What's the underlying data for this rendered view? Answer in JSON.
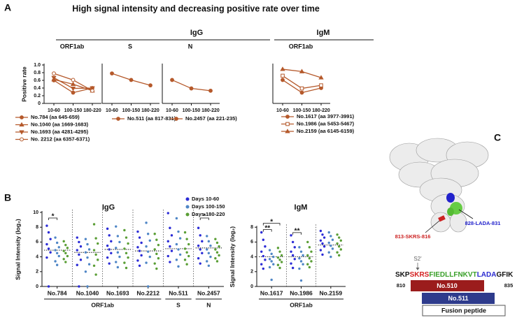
{
  "title": "High signal intensity and decreasing positive rate over time",
  "panel_labels": [
    "A",
    "B",
    "C"
  ],
  "panel_a_headers": [
    "IgG",
    "IgM"
  ],
  "chart_data": [
    {
      "type": "line",
      "title": "ORF1ab",
      "ylabel": "Positive rate",
      "categories": [
        "10-60",
        "100-150",
        "180-220"
      ],
      "ylim": [
        0,
        1
      ],
      "yticks": [
        0,
        0.2,
        0.4,
        0.6,
        0.8,
        {
          "value": 1,
          "label": "1.0"
        }
      ],
      "series": [
        {
          "name": "No.784 (aa 645-659)",
          "color": "#b5592b",
          "marker": "circle",
          "values": [
            0.6,
            0.28,
            0.4
          ]
        },
        {
          "name": "No.1040 (aa 1669-1683)",
          "color": "#b5592b",
          "marker": "triangle",
          "values": [
            0.62,
            0.5,
            0.33
          ]
        },
        {
          "name": "No.1693 (aa 4281-4295)",
          "color": "#b5592b",
          "marker": "triangle-down",
          "values": [
            0.67,
            0.39,
            0.4
          ]
        },
        {
          "name": "No. 2212 (aa 6357-6371)",
          "color": "#b5592b",
          "marker": "circle-open",
          "values": [
            0.78,
            0.61,
            0.33
          ]
        }
      ]
    },
    {
      "type": "line",
      "title": "S",
      "categories": [
        "10-60",
        "100-150",
        "180-220"
      ],
      "ylim": [
        0,
        1
      ],
      "series": [
        {
          "name": "No.511 (aa 817-831)",
          "color": "#b5592b",
          "marker": "circle",
          "values": [
            0.78,
            0.61,
            0.47
          ]
        }
      ]
    },
    {
      "type": "line",
      "title": "N",
      "categories": [
        "10-60",
        "100-150",
        "180-220"
      ],
      "ylim": [
        0,
        1
      ],
      "series": [
        {
          "name": "No.2457 (aa 221-235)",
          "color": "#b5592b",
          "marker": "circle",
          "values": [
            0.61,
            0.39,
            0.33
          ]
        }
      ]
    },
    {
      "type": "line",
      "title": "ORF1ab",
      "categories": [
        "10-60",
        "100-150",
        "180-220"
      ],
      "ylim": [
        0,
        1
      ],
      "series": [
        {
          "name": "No.1617 (aa 3977-3991)",
          "color": "#b5592b",
          "marker": "circle",
          "values": [
            0.61,
            0.28,
            0.4
          ]
        },
        {
          "name": "No.1986 (aa 5453-5467)",
          "color": "#b5592b",
          "marker": "square-open",
          "values": [
            0.72,
            0.39,
            0.47
          ]
        },
        {
          "name": "No.2159 (aa 6145-6159)",
          "color": "#b5592b",
          "marker": "triangle",
          "values": [
            0.89,
            0.83,
            0.67
          ]
        }
      ]
    },
    {
      "type": "strip",
      "title": "IgG",
      "ylabel": "Signal Intensity (log₂)",
      "categories": [
        "No.784",
        "No.1040",
        "No.1693",
        "No.2212",
        "No.511",
        "No.2457"
      ],
      "groups": [
        {
          "label": "ORF1ab",
          "from": "No.784",
          "to": "No.2212"
        },
        {
          "label": "S",
          "from": "No.511",
          "to": "No.511"
        },
        {
          "label": "N",
          "from": "No.2457",
          "to": "No.2457"
        }
      ],
      "ylim": [
        0,
        10
      ],
      "yticks": [
        0,
        2,
        4,
        6,
        8,
        10
      ],
      "legend": "top-right",
      "reference_lines": [
        4.9,
        4.6,
        5.0,
        4.8,
        5.1,
        5.2
      ],
      "series": [
        {
          "name": "Days 10-60",
          "color": "#2b2bd6",
          "values": [
            [
              8.2,
              7.3,
              6.4,
              5.7,
              5.1,
              4.6,
              3.9,
              0
            ],
            [
              6.6,
              6.0,
              5.4,
              4.9,
              4.3,
              3.6,
              2.9,
              0
            ],
            [
              7.8,
              6.9,
              6.1,
              5.5,
              5.0,
              4.5,
              3.9,
              3.1
            ],
            [
              7.4,
              6.6,
              5.9,
              5.3,
              4.8,
              4.2,
              3.5,
              2.8
            ],
            [
              9.9,
              7.9,
              6.9,
              6.1,
              5.4,
              4.8,
              4.1,
              3.3
            ],
            [
              7.9,
              6.9,
              6.1,
              5.5,
              5.0,
              4.5,
              3.8,
              3.1
            ]
          ]
        },
        {
          "name": "Days 100-150",
          "color": "#4f86c6",
          "values": [
            [
              6.6,
              5.9,
              5.3,
              4.9,
              4.5,
              4.1,
              3.4,
              2.9
            ],
            [
              6.4,
              5.7,
              5.0,
              4.6,
              3.9,
              3.0,
              2.0,
              0
            ],
            [
              8.1,
              6.8,
              6.0,
              5.2,
              4.6,
              4.0,
              3.3,
              2.6
            ],
            [
              8.6,
              7.1,
              6.2,
              5.4,
              4.7,
              4.0,
              3.2,
              0
            ],
            [
              9.2,
              7.4,
              6.5,
              5.7,
              5.0,
              4.3,
              3.6,
              2.7
            ],
            [
              6.8,
              6.1,
              5.5,
              5.0,
              4.5,
              4.0,
              3.4,
              2.8
            ]
          ]
        },
        {
          "name": "Days 180-220",
          "color": "#5a9e35",
          "values": [
            [
              6.1,
              5.6,
              5.2,
              4.8,
              4.5,
              4.1,
              3.7,
              3.3
            ],
            [
              8.4,
              6.5,
              5.8,
              4.9,
              4.3,
              3.6,
              2.8,
              1.6
            ],
            [
              7.6,
              6.6,
              5.8,
              5.1,
              4.5,
              3.9,
              3.2,
              2.5
            ],
            [
              7.1,
              6.3,
              5.6,
              5.0,
              4.4,
              3.8,
              3.1,
              2.4
            ],
            [
              7.3,
              6.4,
              5.7,
              5.1,
              4.6,
              4.1,
              3.6,
              3.0
            ],
            [
              6.4,
              5.9,
              5.4,
              5.0,
              4.6,
              4.2,
              3.8,
              3.4
            ]
          ]
        }
      ],
      "annotations": [
        {
          "text": "*",
          "category": "No.784",
          "from": "Days 10-60",
          "to": "Days 100-150"
        },
        {
          "text": "*",
          "category": "No.2457",
          "from": "Days 10-60",
          "to": "Days 100-150"
        }
      ]
    },
    {
      "type": "strip",
      "title": "IgM",
      "ylabel": "Signal Intensity (log₂)",
      "categories": [
        "No.1617",
        "No.1986",
        "No.2159"
      ],
      "groups": [
        {
          "label": "ORF1ab",
          "from": "No.1617",
          "to": "No.2159"
        }
      ],
      "ylim": [
        0,
        8
      ],
      "yticks": [
        0,
        2,
        4,
        6,
        8
      ],
      "legend": false,
      "reference_lines": [
        4.0,
        4.0,
        5.6
      ],
      "series": [
        {
          "name": "Days 10-60",
          "color": "#2b2bd6",
          "values": [
            [
              7.3,
              6.3,
              5.4,
              4.7,
              4.1,
              3.6,
              3.0,
              2.4
            ],
            [
              6.9,
              6.0,
              5.3,
              4.7,
              4.2,
              3.7,
              3.1,
              2.5
            ],
            [
              7.5,
              7.0,
              6.6,
              6.2,
              5.8,
              5.4,
              4.9,
              4.3
            ]
          ]
        },
        {
          "name": "Days 100-150",
          "color": "#4f86c6",
          "values": [
            [
              4.9,
              4.4,
              4.0,
              3.7,
              3.4,
              3.0,
              2.6,
              0.9
            ],
            [
              5.3,
              4.7,
              4.2,
              3.8,
              3.4,
              3.0,
              2.4,
              0.8
            ],
            [
              7.3,
              6.8,
              6.3,
              5.9,
              5.5,
              5.1,
              4.6,
              4.0
            ]
          ]
        },
        {
          "name": "Days 180-220",
          "color": "#5a9e35",
          "values": [
            [
              5.2,
              4.7,
              4.2,
              3.9,
              3.6,
              3.3,
              2.9,
              2.5
            ],
            [
              6.0,
              5.3,
              4.7,
              4.2,
              3.8,
              3.4,
              3.0,
              2.6
            ],
            [
              7.0,
              6.6,
              6.2,
              5.8,
              5.4,
              5.0,
              4.6,
              4.2
            ]
          ]
        }
      ],
      "annotations": [
        {
          "text": "**",
          "category": "No.1617",
          "from": "Days 10-60",
          "to": "Days 100-150"
        },
        {
          "text": "*",
          "category": "No.1617",
          "from": "Days 10-60",
          "to": "Days 180-220"
        },
        {
          "text": "**",
          "category": "No.1986",
          "from": "Days 10-60",
          "to": "Days 100-150"
        }
      ]
    }
  ],
  "structure": {
    "sites": [
      {
        "text": "828-LADA-831",
        "color": "#2222cc"
      },
      {
        "text": "813-SKRS-816",
        "color": "#cc2222"
      }
    ],
    "cleavage": "S2'",
    "sequence": [
      {
        "text": "SKP",
        "color": "#111111"
      },
      {
        "text": "SKRS",
        "color": "#d42020"
      },
      {
        "text": "FIEDLLFNKVT",
        "color": "#3aa02a"
      },
      {
        "text": "LADA",
        "color": "#2a2ad0"
      },
      {
        "text": "GFIK",
        "color": "#111111"
      }
    ],
    "range": [
      810,
      835
    ],
    "peptides": [
      {
        "name": "No.510",
        "color": "#9b1c1c"
      },
      {
        "name": "No.511",
        "color": "#2e3b8c"
      }
    ],
    "region": "Fusion peptide"
  }
}
